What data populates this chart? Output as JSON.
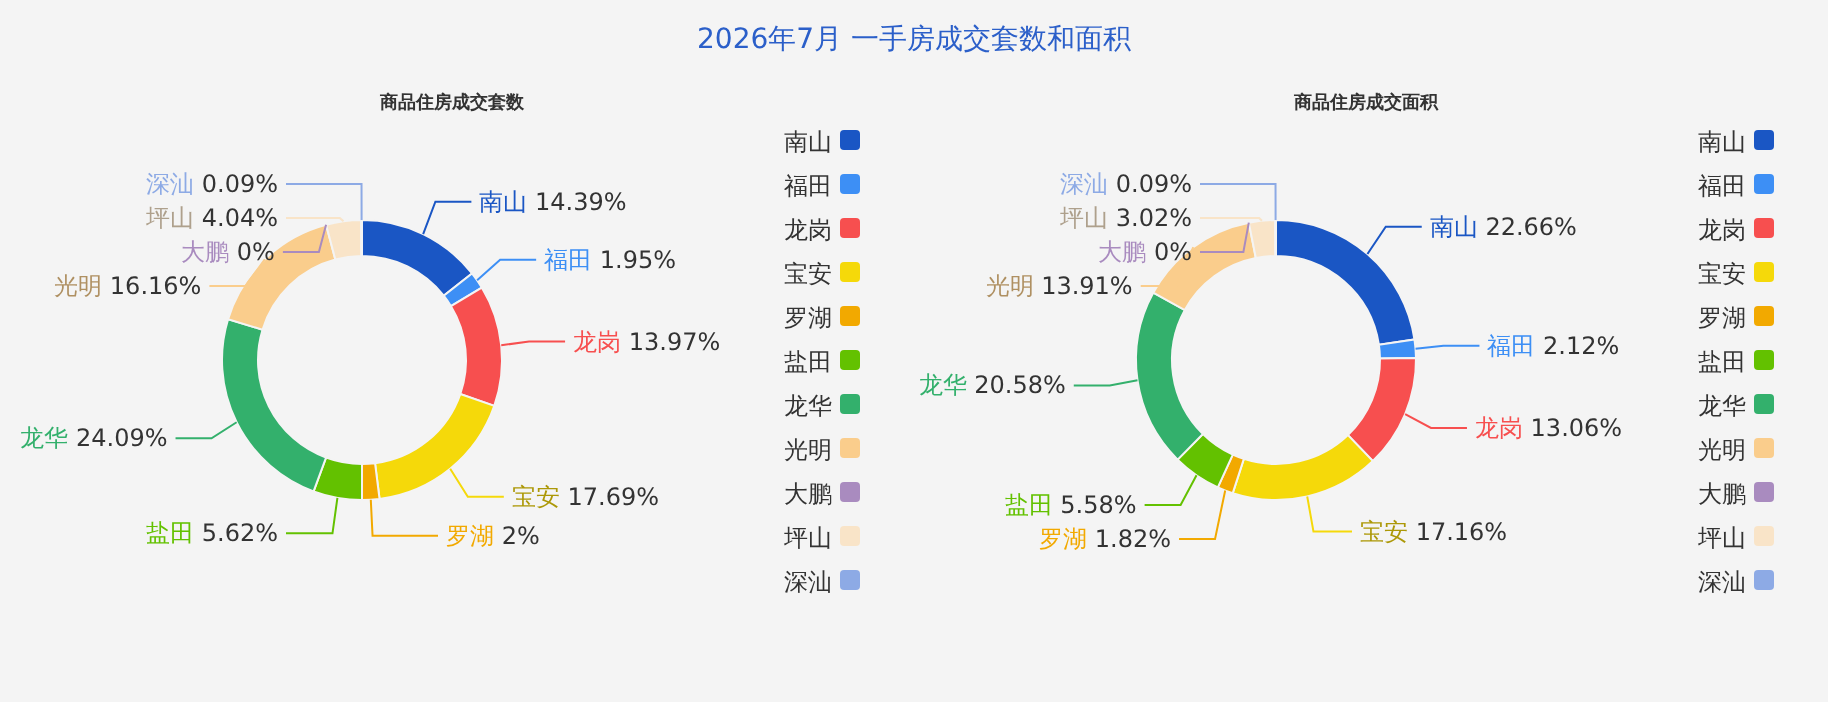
{
  "chart_data": [
    {
      "type": "donut",
      "title": "2026年7月 一手房成交套数和面积",
      "subtitle": "商品住房成交套数",
      "legend": "right",
      "categories": [
        "南山",
        "福田",
        "龙岗",
        "宝安",
        "罗湖",
        "盐田",
        "龙华",
        "光明",
        "大鹏",
        "坪山",
        "深汕"
      ],
      "values": [
        14.39,
        1.95,
        13.97,
        17.69,
        2,
        5.62,
        24.09,
        16.16,
        0,
        4.04,
        0.09
      ],
      "value_labels": [
        "14.39%",
        "1.95%",
        "13.97%",
        "17.69%",
        "2%",
        "5.62%",
        "24.09%",
        "16.16%",
        "0%",
        "4.04%",
        "0.09%"
      ],
      "colors": [
        "#1a56c4",
        "#3d8ff5",
        "#f74f4f",
        "#f5d90a",
        "#f2a900",
        "#63c100",
        "#33b06c",
        "#facd8c",
        "#a98bbf",
        "#f9e4c8",
        "#8daae5"
      ]
    },
    {
      "type": "donut",
      "subtitle": "商品住房成交面积",
      "legend": "right",
      "categories": [
        "南山",
        "福田",
        "龙岗",
        "宝安",
        "罗湖",
        "盐田",
        "龙华",
        "光明",
        "大鹏",
        "坪山",
        "深汕"
      ],
      "values": [
        22.66,
        2.12,
        13.06,
        17.16,
        1.82,
        5.58,
        20.58,
        13.91,
        0,
        3.02,
        0.09
      ],
      "value_labels": [
        "22.66%",
        "2.12%",
        "13.06%",
        "17.16%",
        "1.82%",
        "5.58%",
        "20.58%",
        "13.91%",
        "0%",
        "3.02%",
        "0.09%"
      ],
      "colors": [
        "#1a56c4",
        "#3d8ff5",
        "#f74f4f",
        "#f5d90a",
        "#f2a900",
        "#63c100",
        "#33b06c",
        "#facd8c",
        "#a98bbf",
        "#f9e4c8",
        "#8daae5"
      ]
    }
  ]
}
